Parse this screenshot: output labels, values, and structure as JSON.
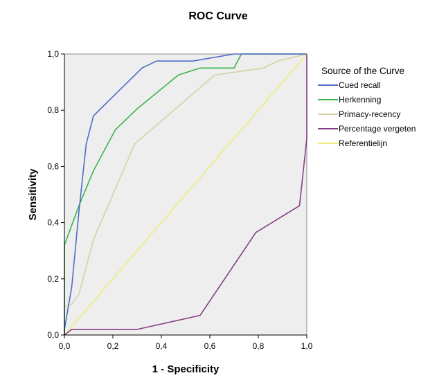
{
  "chart_data": {
    "type": "line",
    "title": "ROC Curve",
    "xlabel": "1 - Specificity",
    "ylabel": "Sensitivity",
    "xlim": [
      0,
      1
    ],
    "ylim": [
      0,
      1
    ],
    "x_ticks": [
      "0,0",
      "0,2",
      "0,4",
      "0,6",
      "0,8",
      "1,0"
    ],
    "y_ticks": [
      "0,0",
      "0,2",
      "0,4",
      "0,6",
      "0,8",
      "1,0"
    ],
    "grid": false,
    "legend_title": "Source of the Curve",
    "legend_position": "right",
    "series": [
      {
        "name": "Cued recall",
        "color": "#4f6bc8",
        "points": [
          [
            0,
            0
          ],
          [
            0,
            0.02
          ],
          [
            0.03,
            0.17
          ],
          [
            0.06,
            0.44
          ],
          [
            0.09,
            0.68
          ],
          [
            0.12,
            0.78
          ],
          [
            0.32,
            0.95
          ],
          [
            0.38,
            0.975
          ],
          [
            0.53,
            0.975
          ],
          [
            0.7,
            1.0
          ],
          [
            1.0,
            1.0
          ]
        ]
      },
      {
        "name": "Herkenning",
        "color": "#39b54a",
        "points": [
          [
            0,
            0
          ],
          [
            0,
            0.32
          ],
          [
            0.06,
            0.46
          ],
          [
            0.12,
            0.585
          ],
          [
            0.21,
            0.73
          ],
          [
            0.3,
            0.805
          ],
          [
            0.47,
            0.925
          ],
          [
            0.56,
            0.95
          ],
          [
            0.7,
            0.95
          ],
          [
            0.73,
            1.0
          ],
          [
            1.0,
            1.0
          ]
        ]
      },
      {
        "name": "Primacy-recency",
        "color": "#d6d1a6",
        "points": [
          [
            0,
            0
          ],
          [
            0,
            0.1
          ],
          [
            0.03,
            0.11
          ],
          [
            0.06,
            0.145
          ],
          [
            0.12,
            0.34
          ],
          [
            0.29,
            0.68
          ],
          [
            0.62,
            0.925
          ],
          [
            0.82,
            0.95
          ],
          [
            0.88,
            0.975
          ],
          [
            1.0,
            1.0
          ]
        ]
      },
      {
        "name": "Percentage vergeten",
        "color": "#863d86",
        "points": [
          [
            0,
            0
          ],
          [
            0.03,
            0.02
          ],
          [
            0.3,
            0.02
          ],
          [
            0.56,
            0.07
          ],
          [
            0.79,
            0.365
          ],
          [
            0.97,
            0.46
          ],
          [
            1.0,
            0.7
          ],
          [
            1.0,
            1.0
          ]
        ]
      },
      {
        "name": "Referentielijn",
        "color": "#f0ec7a",
        "points": [
          [
            0,
            0
          ],
          [
            1,
            1
          ]
        ]
      }
    ]
  }
}
